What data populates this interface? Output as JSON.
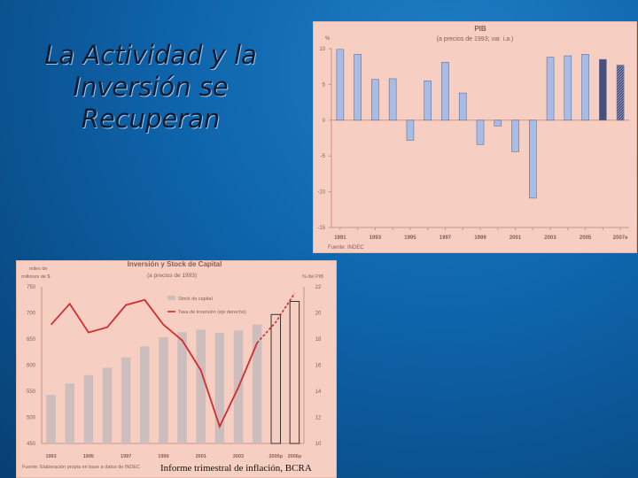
{
  "slide": {
    "title_lines": [
      "La Actividad y la",
      "Inversión se",
      "Recuperan"
    ],
    "caption": "Informe trimestral de inflación, BCRA"
  },
  "chart_data": [
    {
      "type": "bar",
      "title": "PIB",
      "subtitle": "(a precios de 1993; var. i.a.)",
      "ylabel": "%",
      "ylim": [
        -15,
        10
      ],
      "yticks": [
        10,
        5,
        0,
        -5,
        -10,
        -15
      ],
      "categories": [
        "1991",
        "1992",
        "1993",
        "1994",
        "1995",
        "1996",
        "1997",
        "1998",
        "1999",
        "2000",
        "2001",
        "2002",
        "2003",
        "2004",
        "2005",
        "2006",
        "2007"
      ],
      "values": [
        9.9,
        9.2,
        5.7,
        5.8,
        -2.8,
        5.5,
        8.1,
        3.8,
        -3.4,
        -0.8,
        -4.4,
        -10.9,
        8.8,
        9.0,
        9.2,
        8.5,
        7.7
      ],
      "bar_styles": [
        "normal",
        "normal",
        "normal",
        "normal",
        "normal",
        "normal",
        "normal",
        "normal",
        "normal",
        "normal",
        "normal",
        "normal",
        "normal",
        "normal",
        "normal",
        "dark",
        "dark-hatched"
      ],
      "tick_labels": [
        "1991",
        "1993",
        "1995",
        "1997",
        "1999",
        "2001",
        "2003",
        "2005",
        "2007e"
      ],
      "source": "Fuente: INDEC",
      "grid": false,
      "colors": {
        "bar": "#a9bde4",
        "bar_edge": "#5c6f9e",
        "dark": "#4b4f78",
        "axis": "#c9948a",
        "text": "#8a5b55"
      }
    },
    {
      "type": "bar",
      "title": "Inversión y Stock de Capital",
      "subtitle": "(a precios de 1993)",
      "ylabel": "miles de millones de $",
      "y2label": "% del PIB",
      "ylim": [
        450,
        750
      ],
      "y2lim": [
        10,
        22
      ],
      "yticks": [
        750,
        700,
        650,
        600,
        550,
        500,
        450
      ],
      "y2ticks": [
        22,
        20,
        18,
        16,
        14,
        12,
        10
      ],
      "categories": [
        "1993",
        "1994",
        "1995",
        "1996",
        "1997",
        "1998",
        "1999",
        "2000",
        "2001",
        "2002",
        "2003",
        "2004",
        "2005p",
        "2006p"
      ],
      "tick_labels": [
        "1993",
        "1995",
        "1997",
        "1999",
        "2001",
        "2003",
        "2005p",
        "2006p"
      ],
      "series": [
        {
          "name": "Stock de capital",
          "type": "bar",
          "values": [
            543,
            565,
            581,
            595,
            615,
            636,
            653,
            663,
            668,
            662,
            666,
            678,
            697,
            722
          ]
        },
        {
          "name": "Tasa de inversión (eje derecho)",
          "type": "line",
          "values": [
            19.1,
            20.7,
            18.5,
            18.9,
            20.6,
            21.0,
            19.1,
            17.9,
            15.6,
            11.3,
            14.3,
            17.7,
            19.3,
            21.5
          ]
        }
      ],
      "projected_from_index": 12,
      "legend_position": "top-center",
      "source": "Fuente: Elaboración propia en base a datos de INDEC",
      "grid": false,
      "colors": {
        "bar": "#cdbdbd",
        "line": "#d62a2f",
        "axis": "#c9948a",
        "text": "#8a5b55"
      }
    }
  ]
}
